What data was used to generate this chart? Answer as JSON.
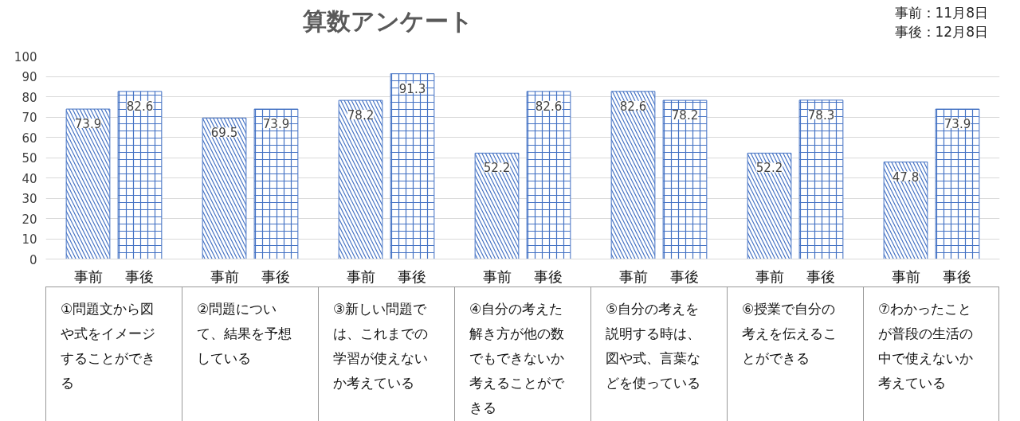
{
  "chart_data": {
    "type": "bar",
    "title": "算数アンケート",
    "annotations": [
      "事前：11月8日",
      "事後：12月8日"
    ],
    "categories": [
      "①問題文から図や式をイメージすることができる",
      "②問題について、結果を予想している",
      "③新しい問題では、これまでの学習が使えないか考えている",
      "④自分の考えた解き方が他の数でもできないか考えることができる",
      "⑤自分の考えを説明する時は、図や式、言葉などを使っている",
      "⑥授業で自分の考えを伝えることができる",
      "⑦わかったことが普段の生活の中で使えないか考えている"
    ],
    "series": [
      {
        "name": "事前",
        "color": "#4472c4",
        "values": [
          73.9,
          69.5,
          78.2,
          52.2,
          82.6,
          52.2,
          47.8
        ]
      },
      {
        "name": "事後",
        "color": "#4472c4",
        "values": [
          82.6,
          73.9,
          91.3,
          82.6,
          78.2,
          78.3,
          73.9
        ]
      }
    ],
    "ylim": [
      0,
      100
    ],
    "yticks": [
      0,
      10,
      20,
      30,
      40,
      50,
      60,
      70,
      80,
      90,
      100
    ],
    "grid": "y",
    "data_labels": true
  }
}
